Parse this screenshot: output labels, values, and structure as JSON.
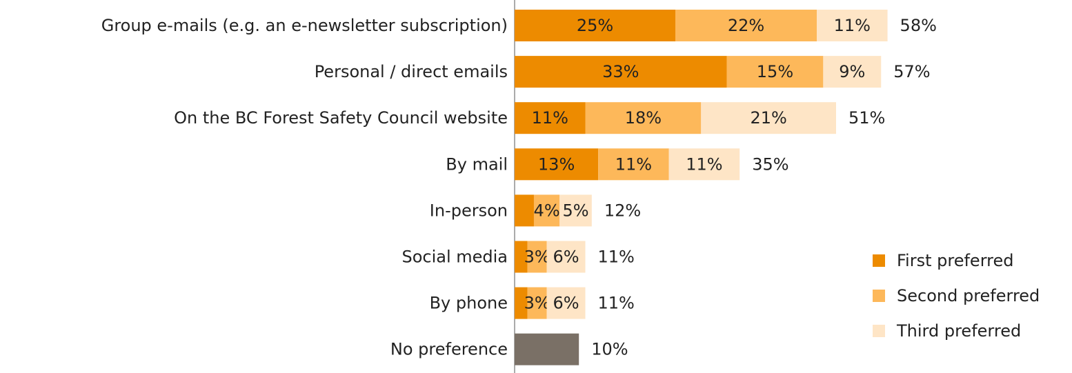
{
  "chart_data": {
    "type": "stacked-bar-horizontal",
    "categories": [
      "Group e-mails (e.g. an e-newsletter subscription)",
      "Personal / direct emails",
      "On the BC Forest Safety Council website",
      "By mail",
      "In-person",
      "Social media",
      "By phone",
      "No preference"
    ],
    "series": [
      {
        "name": "First preferred",
        "color": "#ed8b00",
        "values": [
          25,
          33,
          11,
          13,
          3,
          2,
          2,
          null
        ],
        "value_labels": [
          "25%",
          "33%",
          "11%",
          "13%",
          null,
          null,
          null,
          null
        ]
      },
      {
        "name": "Second preferred",
        "color": "#fdb85a",
        "values": [
          22,
          15,
          18,
          11,
          4,
          3,
          3,
          null
        ],
        "value_labels": [
          "22%",
          "15%",
          "18%",
          "11%",
          "4%",
          "3%",
          "3%",
          null
        ]
      },
      {
        "name": "Third preferred",
        "color": "#fee5c6",
        "values": [
          11,
          9,
          21,
          11,
          5,
          6,
          6,
          null
        ],
        "value_labels": [
          "11%",
          "9%",
          "21%",
          "11%",
          "5%",
          "6%",
          "6%",
          null
        ]
      },
      {
        "color": "#7a7066",
        "values": [
          null,
          null,
          null,
          null,
          null,
          null,
          null,
          10
        ]
      }
    ],
    "totals": {
      "values": [
        58,
        57,
        51,
        35,
        12,
        11,
        11,
        10
      ],
      "value_labels": [
        "58%",
        "57%",
        "51%",
        "35%",
        "12%",
        "11%",
        "11%",
        "10%"
      ]
    },
    "legend": "lower right"
  }
}
